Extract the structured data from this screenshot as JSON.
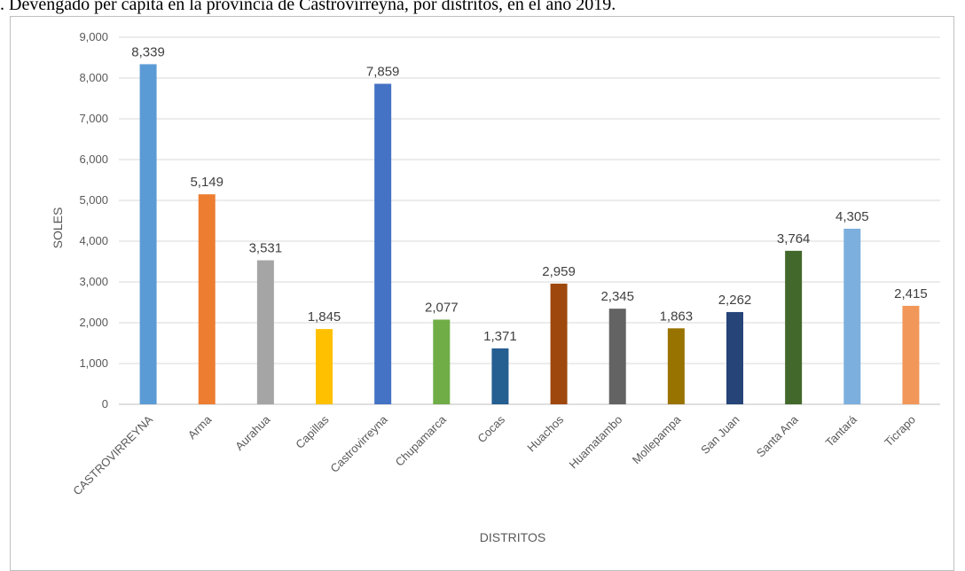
{
  "caption": ". Devengado per cápita en la provincia de Castrovirreyna, por distritos, en el año 2019.",
  "chart_data": {
    "type": "bar",
    "title": "",
    "xlabel": "DISTRITOS",
    "ylabel": "SOLES",
    "ylim": [
      0,
      9000
    ],
    "yticks": [
      "0",
      "1,000",
      "2,000",
      "3,000",
      "4,000",
      "5,000",
      "6,000",
      "7,000",
      "8,000",
      "9,000"
    ],
    "grid": true,
    "legend": "none",
    "categories": [
      "CASTROVIRREYNA",
      "Arma",
      "Aurahua",
      "Capillas",
      "Castrovirreyna",
      "Chupamarca",
      "Cocas",
      "Huachos",
      "Huamatambo",
      "Mollepampa",
      "San Juan",
      "Santa Ana",
      "Tantará",
      "Ticrapo"
    ],
    "values": [
      8339,
      5149,
      3531,
      1845,
      7859,
      2077,
      1371,
      2959,
      2345,
      1863,
      2262,
      3764,
      4305,
      2415
    ],
    "value_labels": [
      "8,339",
      "5,149",
      "3,531",
      "1,845",
      "7,859",
      "2,077",
      "1,371",
      "2,959",
      "2,345",
      "1,863",
      "2,262",
      "3,764",
      "4,305",
      "2,415"
    ],
    "colors": [
      "#5b9bd5",
      "#ed7d31",
      "#a5a5a5",
      "#ffc000",
      "#4472c4",
      "#70ad47",
      "#255e91",
      "#9e480e",
      "#636363",
      "#997300",
      "#264478",
      "#43682b",
      "#7cafdd",
      "#f1975a"
    ],
    "grid_color": "#d9d9d9",
    "axis_color": "#bfbfbf"
  }
}
